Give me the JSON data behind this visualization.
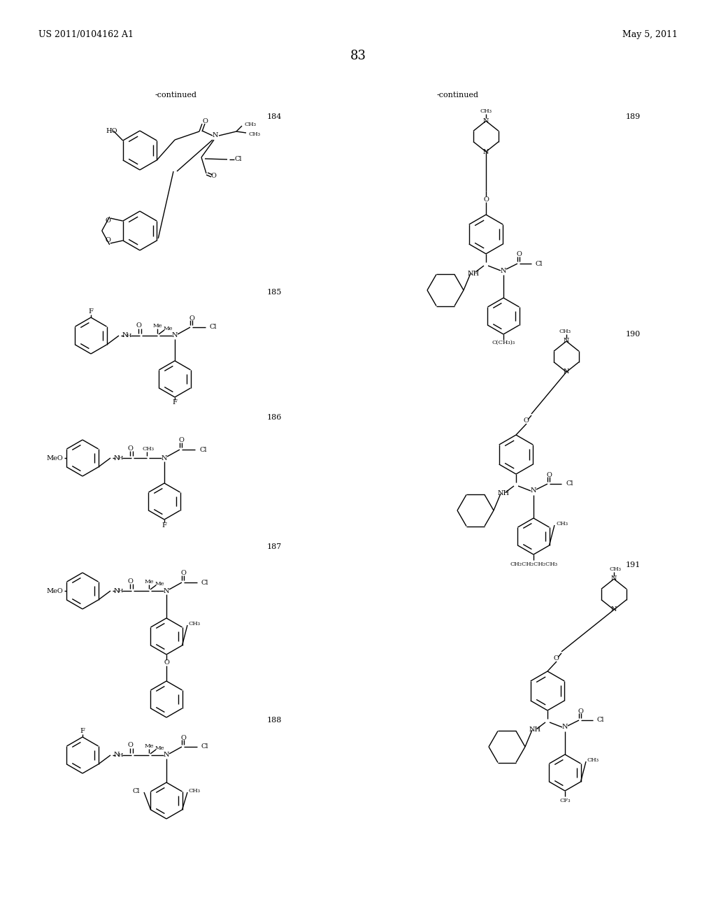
{
  "page_header_left": "US 2011/0104162 A1",
  "page_header_right": "May 5, 2011",
  "page_number": "83",
  "continued_left": "-continued",
  "continued_right": "-continued",
  "background_color": "#ffffff",
  "text_color": "#000000",
  "line_color": "#000000",
  "font_size_header": 9,
  "font_size_page": 13,
  "font_size_compound": 8,
  "font_size_continued": 8,
  "font_size_atom": 7,
  "font_size_atom_small": 6
}
